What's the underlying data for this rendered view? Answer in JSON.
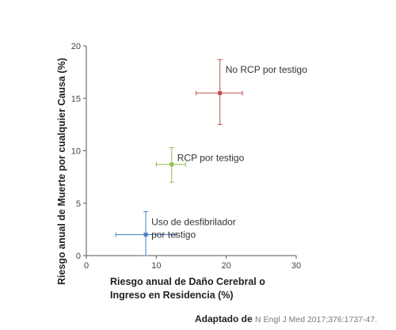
{
  "chart_data": {
    "type": "scatter",
    "title": "",
    "xlabel_line1": "Riesgo anual de Daño Cerebral o",
    "xlabel_line2": "Ingreso en Residencia (%)",
    "ylabel": "Riesgo anual de Muerte por cualquier Causa (%)",
    "xlim": [
      0,
      30
    ],
    "ylim": [
      0,
      20
    ],
    "x_ticks": [
      "0",
      "10",
      "20",
      "30"
    ],
    "y_ticks": [
      "0",
      "5",
      "10",
      "15",
      "20"
    ],
    "grid": false,
    "points": [
      {
        "label_lines": [
          "Uso de desfibrilador",
          "por testigo"
        ],
        "x": 8.5,
        "y": 2.0,
        "x_err": [
          4.2,
          12.8
        ],
        "y_err": [
          0.0,
          4.2
        ],
        "color": "#4a7fc1"
      },
      {
        "label_lines": [
          "RCP por testigo"
        ],
        "x": 12.2,
        "y": 8.7,
        "x_err": [
          10.0,
          14.2
        ],
        "y_err": [
          7.0,
          10.3
        ],
        "color": "#8fbf50"
      },
      {
        "label_lines": [
          "No RCP por testigo"
        ],
        "x": 19.1,
        "y": 15.5,
        "x_err": [
          15.7,
          22.3
        ],
        "y_err": [
          12.5,
          18.7
        ],
        "color": "#c0504d"
      }
    ]
  },
  "source": {
    "lead": "Adaptado de",
    "citation": "N Engl J Med 2017;376:1737-47."
  }
}
